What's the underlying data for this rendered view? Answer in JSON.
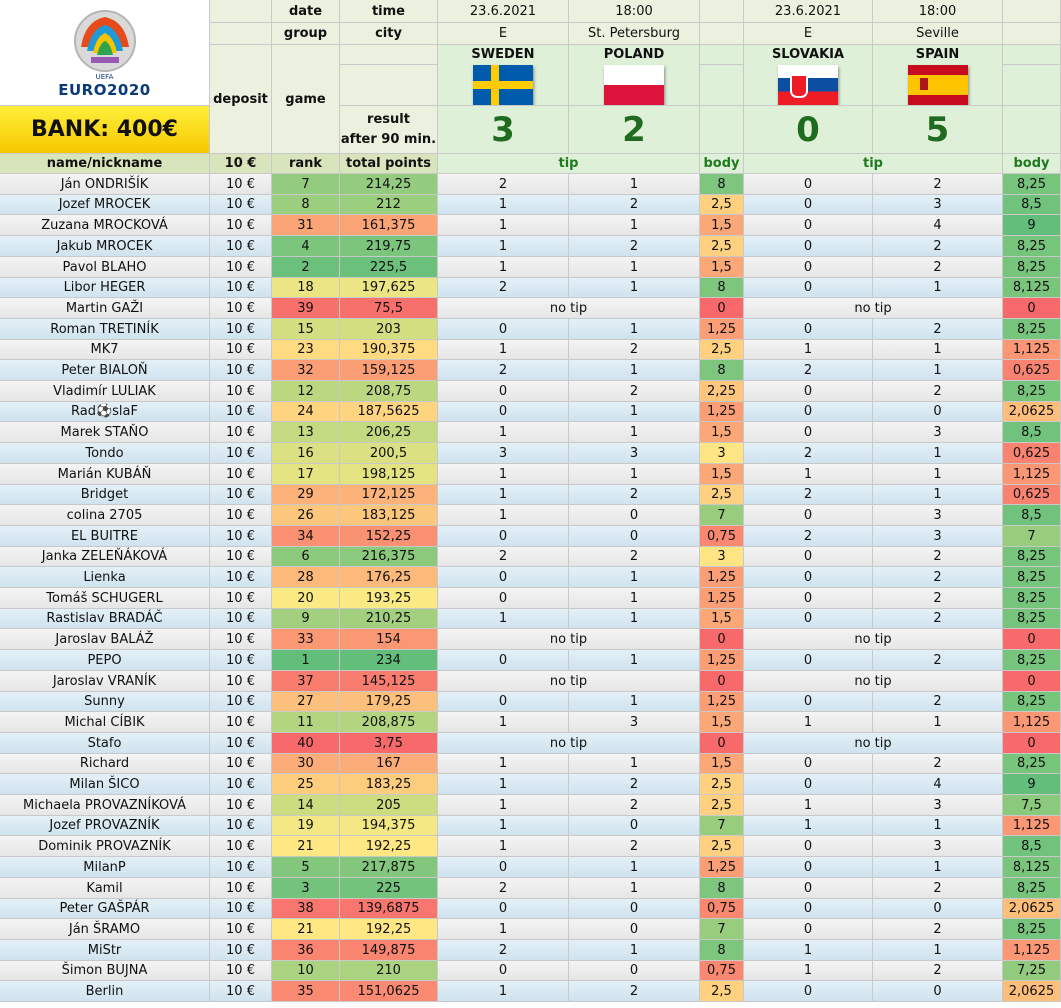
{
  "header": {
    "logo_text": "EURO2020",
    "logo_small": "UEFA",
    "bank_label": "BANK: 400€",
    "date_label": "date",
    "time_label": "time",
    "group_label": "group",
    "city_label": "city",
    "deposit_label": "deposit",
    "game_label": "game",
    "result_label_1": "result",
    "result_label_2": "after 90 min.",
    "col_name": "name/nickname",
    "col_deposit": "10 €",
    "col_rank": "rank",
    "col_total": "total points",
    "tip_label": "tip",
    "body_label": "body",
    "no_tip": "no tip"
  },
  "matches": [
    {
      "date": "23.6.2021",
      "time": "18:00",
      "group": "E",
      "city": "St. Petersburg",
      "team1": "SWEDEN",
      "team2": "POLAND",
      "score1": "3",
      "score2": "2",
      "flag1_colors": [
        "#005bac",
        "#fecc00"
      ],
      "flag2_colors": [
        "#ffffff",
        "#dc143c"
      ]
    },
    {
      "date": "23.6.2021",
      "time": "18:00",
      "group": "E",
      "city": "Seville",
      "team1": "SLOVAKIA",
      "team2": "SPAIN",
      "score1": "0",
      "score2": "5",
      "flag1_colors": [
        "#ffffff",
        "#0b4ea2",
        "#ee1c25"
      ],
      "flag2_colors": [
        "#c60b1e",
        "#ffc400"
      ]
    }
  ],
  "rows": [
    {
      "name": "Ján ONDRIŠÍK",
      "deposit": "10 €",
      "rank": "7",
      "total": "214,25",
      "t1": [
        "2",
        "1"
      ],
      "b1": "8",
      "t2": [
        "0",
        "2"
      ],
      "b2": "8,25"
    },
    {
      "name": "Jozef MROCEK",
      "deposit": "10 €",
      "rank": "8",
      "total": "212",
      "t1": [
        "1",
        "2"
      ],
      "b1": "2,5",
      "t2": [
        "0",
        "3"
      ],
      "b2": "8,5"
    },
    {
      "name": "Zuzana MROCKOVÁ",
      "deposit": "10 €",
      "rank": "31",
      "total": "161,375",
      "t1": [
        "1",
        "1"
      ],
      "b1": "1,5",
      "t2": [
        "0",
        "4"
      ],
      "b2": "9"
    },
    {
      "name": "Jakub MROCEK",
      "deposit": "10 €",
      "rank": "4",
      "total": "219,75",
      "t1": [
        "1",
        "2"
      ],
      "b1": "2,5",
      "t2": [
        "0",
        "2"
      ],
      "b2": "8,25"
    },
    {
      "name": "Pavol BLAHO",
      "deposit": "10 €",
      "rank": "2",
      "total": "225,5",
      "t1": [
        "1",
        "1"
      ],
      "b1": "1,5",
      "t2": [
        "0",
        "2"
      ],
      "b2": "8,25"
    },
    {
      "name": "Libor HEGER",
      "deposit": "10 €",
      "rank": "18",
      "total": "197,625",
      "t1": [
        "2",
        "1"
      ],
      "b1": "8",
      "t2": [
        "0",
        "1"
      ],
      "b2": "8,125"
    },
    {
      "name": "Martin GAŽI",
      "deposit": "10 €",
      "rank": "39",
      "total": "75,5",
      "notip": true,
      "b1": "0",
      "b2": "0"
    },
    {
      "name": "Roman TRETINÍK",
      "deposit": "10 €",
      "rank": "15",
      "total": "203",
      "t1": [
        "0",
        "1"
      ],
      "b1": "1,25",
      "t2": [
        "0",
        "2"
      ],
      "b2": "8,25"
    },
    {
      "name": "MK7",
      "deposit": "10 €",
      "rank": "23",
      "total": "190,375",
      "t1": [
        "1",
        "2"
      ],
      "b1": "2,5",
      "t2": [
        "1",
        "1"
      ],
      "b2": "1,125"
    },
    {
      "name": "Peter BIALOŇ",
      "deposit": "10 €",
      "rank": "32",
      "total": "159,125",
      "t1": [
        "2",
        "1"
      ],
      "b1": "8",
      "t2": [
        "2",
        "1"
      ],
      "b2": "0,625"
    },
    {
      "name": "Vladimír LULIAK",
      "deposit": "10 €",
      "rank": "12",
      "total": "208,75",
      "t1": [
        "0",
        "2"
      ],
      "b1": "2,25",
      "t2": [
        "0",
        "2"
      ],
      "b2": "8,25"
    },
    {
      "name": "Rad⚽slaF",
      "deposit": "10 €",
      "rank": "24",
      "total": "187,5625",
      "t1": [
        "0",
        "1"
      ],
      "b1": "1,25",
      "t2": [
        "0",
        "0"
      ],
      "b2": "2,0625"
    },
    {
      "name": "Marek STAŇO",
      "deposit": "10 €",
      "rank": "13",
      "total": "206,25",
      "t1": [
        "1",
        "1"
      ],
      "b1": "1,5",
      "t2": [
        "0",
        "3"
      ],
      "b2": "8,5"
    },
    {
      "name": "Tondo",
      "deposit": "10 €",
      "rank": "16",
      "total": "200,5",
      "t1": [
        "3",
        "3"
      ],
      "b1": "3",
      "t2": [
        "2",
        "1"
      ],
      "b2": "0,625"
    },
    {
      "name": "Marián KUBÁŇ",
      "deposit": "10 €",
      "rank": "17",
      "total": "198,125",
      "t1": [
        "1",
        "1"
      ],
      "b1": "1,5",
      "t2": [
        "1",
        "1"
      ],
      "b2": "1,125"
    },
    {
      "name": "Bridget",
      "deposit": "10 €",
      "rank": "29",
      "total": "172,125",
      "t1": [
        "1",
        "2"
      ],
      "b1": "2,5",
      "t2": [
        "2",
        "1"
      ],
      "b2": "0,625"
    },
    {
      "name": "colina 2705",
      "deposit": "10 €",
      "rank": "26",
      "total": "183,125",
      "t1": [
        "1",
        "0"
      ],
      "b1": "7",
      "t2": [
        "0",
        "3"
      ],
      "b2": "8,5"
    },
    {
      "name": "EL BUITRE",
      "deposit": "10 €",
      "rank": "34",
      "total": "152,25",
      "t1": [
        "0",
        "0"
      ],
      "b1": "0,75",
      "t2": [
        "2",
        "3"
      ],
      "b2": "7"
    },
    {
      "name": "Janka ZELEŇÁKOVÁ",
      "deposit": "10 €",
      "rank": "6",
      "total": "216,375",
      "t1": [
        "2",
        "2"
      ],
      "b1": "3",
      "t2": [
        "0",
        "2"
      ],
      "b2": "8,25"
    },
    {
      "name": "Lienka",
      "deposit": "10 €",
      "rank": "28",
      "total": "176,25",
      "t1": [
        "0",
        "1"
      ],
      "b1": "1,25",
      "t2": [
        "0",
        "2"
      ],
      "b2": "8,25"
    },
    {
      "name": "Tomáš SCHUGERL",
      "deposit": "10 €",
      "rank": "20",
      "total": "193,25",
      "t1": [
        "0",
        "1"
      ],
      "b1": "1,25",
      "t2": [
        "0",
        "2"
      ],
      "b2": "8,25"
    },
    {
      "name": "Rastislav BRADÁČ",
      "deposit": "10 €",
      "rank": "9",
      "total": "210,25",
      "t1": [
        "1",
        "1"
      ],
      "b1": "1,5",
      "t2": [
        "0",
        "2"
      ],
      "b2": "8,25"
    },
    {
      "name": "Jaroslav BALÁŽ",
      "deposit": "10 €",
      "rank": "33",
      "total": "154",
      "notip": true,
      "b1": "0",
      "b2": "0"
    },
    {
      "name": "PEPO",
      "deposit": "10 €",
      "rank": "1",
      "total": "234",
      "t1": [
        "0",
        "1"
      ],
      "b1": "1,25",
      "t2": [
        "0",
        "2"
      ],
      "b2": "8,25"
    },
    {
      "name": "Jaroslav VRANÍK",
      "deposit": "10 €",
      "rank": "37",
      "total": "145,125",
      "notip": true,
      "b1": "0",
      "b2": "0"
    },
    {
      "name": "Sunny",
      "deposit": "10 €",
      "rank": "27",
      "total": "179,25",
      "t1": [
        "0",
        "1"
      ],
      "b1": "1,25",
      "t2": [
        "0",
        "2"
      ],
      "b2": "8,25"
    },
    {
      "name": "Michal CÍBIK",
      "deposit": "10 €",
      "rank": "11",
      "total": "208,875",
      "t1": [
        "1",
        "3"
      ],
      "b1": "1,5",
      "t2": [
        "1",
        "1"
      ],
      "b2": "1,125"
    },
    {
      "name": "Stafo",
      "deposit": "10 €",
      "rank": "40",
      "total": "3,75",
      "notip": true,
      "b1": "0",
      "b2": "0"
    },
    {
      "name": "Richard",
      "deposit": "10 €",
      "rank": "30",
      "total": "167",
      "t1": [
        "1",
        "1"
      ],
      "b1": "1,5",
      "t2": [
        "0",
        "2"
      ],
      "b2": "8,25"
    },
    {
      "name": "Milan ŠICO",
      "deposit": "10 €",
      "rank": "25",
      "total": "183,25",
      "t1": [
        "1",
        "2"
      ],
      "b1": "2,5",
      "t2": [
        "0",
        "4"
      ],
      "b2": "9"
    },
    {
      "name": "Michaela PROVAZNÍKOVÁ",
      "deposit": "10 €",
      "rank": "14",
      "total": "205",
      "t1": [
        "1",
        "2"
      ],
      "b1": "2,5",
      "t2": [
        "1",
        "3"
      ],
      "b2": "7,5"
    },
    {
      "name": "Jozef PROVAZNÍK",
      "deposit": "10 €",
      "rank": "19",
      "total": "194,375",
      "t1": [
        "1",
        "0"
      ],
      "b1": "7",
      "t2": [
        "1",
        "1"
      ],
      "b2": "1,125"
    },
    {
      "name": "Dominik PROVAZNÍK",
      "deposit": "10 €",
      "rank": "21",
      "total": "192,25",
      "t1": [
        "1",
        "2"
      ],
      "b1": "2,5",
      "t2": [
        "0",
        "3"
      ],
      "b2": "8,5"
    },
    {
      "name": "MilanP",
      "deposit": "10 €",
      "rank": "5",
      "total": "217,875",
      "t1": [
        "0",
        "1"
      ],
      "b1": "1,25",
      "t2": [
        "0",
        "1"
      ],
      "b2": "8,125"
    },
    {
      "name": "Kamil",
      "deposit": "10 €",
      "rank": "3",
      "total": "225",
      "t1": [
        "2",
        "1"
      ],
      "b1": "8",
      "t2": [
        "0",
        "2"
      ],
      "b2": "8,25"
    },
    {
      "name": "Peter GAŠPÁR",
      "deposit": "10 €",
      "rank": "38",
      "total": "139,6875",
      "t1": [
        "0",
        "0"
      ],
      "b1": "0,75",
      "t2": [
        "0",
        "0"
      ],
      "b2": "2,0625"
    },
    {
      "name": "Ján ŠRAMO",
      "deposit": "10 €",
      "rank": "21",
      "total": "192,25",
      "t1": [
        "1",
        "0"
      ],
      "b1": "7",
      "t2": [
        "0",
        "2"
      ],
      "b2": "8,25"
    },
    {
      "name": "MiStr",
      "deposit": "10 €",
      "rank": "36",
      "total": "149,875",
      "t1": [
        "2",
        "1"
      ],
      "b1": "8",
      "t2": [
        "1",
        "1"
      ],
      "b2": "1,125"
    },
    {
      "name": "Šimon BUJNA",
      "deposit": "10 €",
      "rank": "10",
      "total": "210",
      "t1": [
        "0",
        "0"
      ],
      "b1": "0,75",
      "t2": [
        "1",
        "2"
      ],
      "b2": "7,25"
    },
    {
      "name": "Berlin",
      "deposit": "10 €",
      "rank": "35",
      "total": "151,0625",
      "t1": [
        "1",
        "2"
      ],
      "b1": "2,5",
      "t2": [
        "0",
        "0"
      ],
      "b2": "2,0625"
    }
  ]
}
